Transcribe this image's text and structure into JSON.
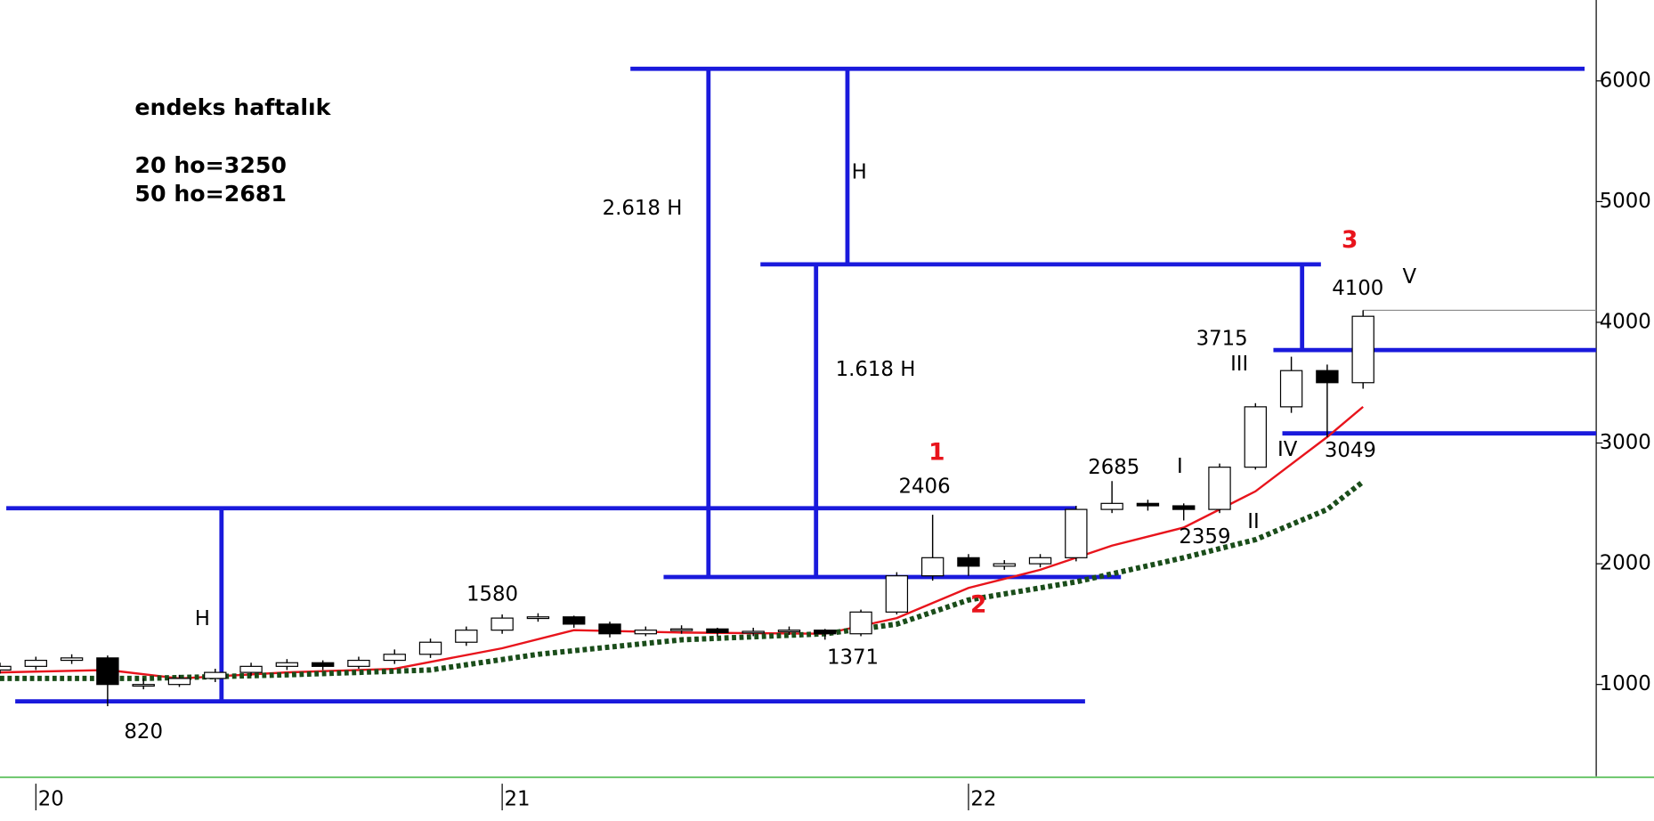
{
  "chart_data": {
    "type": "candlestick",
    "title": "endeks haftalık",
    "subtitle": [
      "20 ho=3250",
      "50 ho=2681"
    ],
    "x": [
      -4,
      0,
      4,
      8,
      12,
      16,
      20,
      24,
      28,
      32,
      36,
      40,
      44,
      48,
      52,
      56,
      60,
      64,
      68,
      72,
      76,
      80,
      84,
      88,
      92,
      96,
      100,
      104,
      108,
      112,
      116,
      120,
      124,
      128,
      132,
      136,
      140,
      144,
      148
    ],
    "open": [
      1120,
      1150,
      1200,
      1220,
      1000,
      1000,
      1050,
      1100,
      1150,
      1180,
      1150,
      1200,
      1250,
      1350,
      1450,
      1550,
      1560,
      1500,
      1420,
      1450,
      1460,
      1430,
      1440,
      1450,
      1420,
      1600,
      1900,
      2050,
      1980,
      2000,
      2050,
      2450,
      2500,
      2480,
      2450,
      2800,
      3300,
      3600,
      3500
    ],
    "high": [
      1180,
      1230,
      1250,
      1240,
      1050,
      1080,
      1130,
      1180,
      1210,
      1200,
      1230,
      1290,
      1380,
      1480,
      1580,
      1590,
      1570,
      1520,
      1480,
      1490,
      1470,
      1470,
      1480,
      1460,
      1620,
      1930,
      2406,
      2080,
      2030,
      2080,
      2480,
      2685,
      2530,
      2500,
      2830,
      3330,
      3715,
      3650,
      4100
    ],
    "low": [
      1090,
      1120,
      1170,
      820,
      960,
      980,
      1020,
      1070,
      1120,
      1120,
      1130,
      1170,
      1220,
      1320,
      1420,
      1520,
      1470,
      1390,
      1400,
      1420,
      1400,
      1400,
      1410,
      1371,
      1400,
      1580,
      1860,
      1900,
      1950,
      1970,
      2020,
      2420,
      2440,
      2359,
      2420,
      2780,
      3250,
      3049,
      3450
    ],
    "close": [
      1150,
      1200,
      1220,
      1000,
      1000,
      1050,
      1100,
      1150,
      1180,
      1150,
      1200,
      1250,
      1350,
      1450,
      1550,
      1560,
      1500,
      1420,
      1450,
      1460,
      1430,
      1440,
      1450,
      1420,
      1600,
      1900,
      2050,
      1980,
      2000,
      2050,
      2450,
      2500,
      2480,
      2450,
      2800,
      3300,
      3600,
      3500,
      4050
    ],
    "averages": [
      {
        "color": "#e8141c",
        "x": [
          -4,
          8,
          16,
          28,
          40,
          52,
          60,
          72,
          88,
          96,
          104,
          112,
          120,
          128,
          136,
          144,
          148
        ],
        "values": [
          1100,
          1120,
          1050,
          1100,
          1130,
          1300,
          1450,
          1430,
          1420,
          1550,
          1800,
          1950,
          2150,
          2300,
          2600,
          3050,
          3300
        ]
      },
      {
        "color": "#1a4d1a",
        "dashed": true,
        "x": [
          -4,
          12,
          28,
          44,
          56,
          72,
          88,
          96,
          104,
          116,
          128,
          136,
          144,
          148
        ],
        "values": [
          1050,
          1050,
          1080,
          1120,
          1250,
          1370,
          1420,
          1500,
          1700,
          1850,
          2050,
          2200,
          2450,
          2680
        ]
      }
    ],
    "levels": [
      {
        "value": 6100,
        "x": [
          66.3,
          172.7
        ]
      },
      {
        "value": 4480,
        "x": [
          80.8,
          143.3
        ]
      },
      {
        "value": 3770,
        "x": [
          138,
          174
        ]
      },
      {
        "value": 3080,
        "x": [
          139,
          174
        ]
      },
      {
        "value": 2460,
        "x": [
          -3.3,
          116
        ]
      },
      {
        "value": 1890,
        "x": [
          70,
          121
        ]
      },
      {
        "value": 860,
        "x": [
          -2.3,
          117
        ]
      }
    ],
    "verticals": [
      {
        "x": 20.7,
        "values": [
          2460,
          860
        ]
      },
      {
        "x": 75,
        "values": [
          6100,
          1890
        ]
      },
      {
        "x": 87,
        "values": [
          4480,
          1890
        ]
      },
      {
        "x": 90.5,
        "values": [
          6100,
          4480
        ]
      },
      {
        "x": 141.2,
        "values": [
          4480,
          3770
        ]
      }
    ],
    "last_price": {
      "value": 4100,
      "x": [
        148,
        174
      ]
    },
    "annotations": [
      "2.618 H",
      "H",
      "H",
      "1.618 H",
      "1",
      "2",
      "3",
      "2406",
      "1580",
      "820",
      "1371",
      "2685",
      "I",
      "2359",
      "II",
      "3715",
      "III",
      "IV",
      "3049",
      "4100",
      "V"
    ],
    "xlim": [
      -4,
      174
    ],
    "xticks": [
      {
        "value": 0,
        "label": "20"
      },
      {
        "value": 52,
        "label": "21"
      },
      {
        "value": 104,
        "label": "22"
      }
    ],
    "ylim": [
      240,
      6670
    ],
    "yticks": [
      1000,
      2000,
      3000,
      4000,
      5000,
      6000
    ]
  }
}
